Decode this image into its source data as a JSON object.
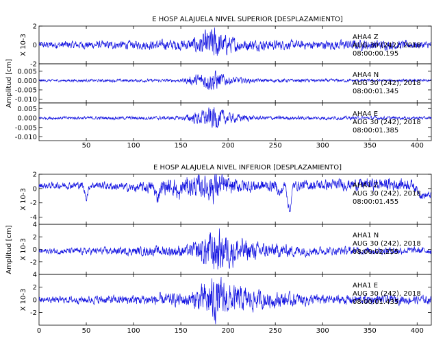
{
  "chart_data": [
    {
      "type": "line",
      "title": "E HOSP ALAJUELA NIVEL SUPERIOR [DESPLAZAMIENTO]",
      "ylabel": "Amplitud [cm]",
      "xlim": [
        0,
        415
      ],
      "xticks": [
        "50",
        "100",
        "150",
        "200",
        "250",
        "300",
        "350",
        "400"
      ],
      "line_color": "#1010e0",
      "panels": [
        {
          "scale_label": "X 10-3",
          "ylim": [
            -2,
            2
          ],
          "yticks": [
            "2",
            "0",
            "-2"
          ],
          "station": "AHA4   Z",
          "date": "AUG 30 (242), 2018",
          "time": "08:00:00.195",
          "series": {
            "name": "AHA4 Z",
            "x_range": [
              0,
              415
            ],
            "envelope": [
              [
                0,
                0.35
              ],
              [
                100,
                0.4
              ],
              [
                160,
                0.55
              ],
              [
                175,
                1.2
              ],
              [
                185,
                1.8
              ],
              [
                195,
                1.0
              ],
              [
                215,
                0.55
              ],
              [
                280,
                0.4
              ],
              [
                340,
                0.5
              ],
              [
                415,
                0.35
              ]
            ],
            "drift": [
              [
                0,
                0.0
              ],
              [
                415,
                0.0
              ]
            ],
            "events": []
          }
        },
        {
          "scale_label": "",
          "ylim": [
            -0.012,
            0.009
          ],
          "yticks": [
            "0.005",
            "0.000",
            "-0.005",
            "-0.010"
          ],
          "station": "AHA4   N",
          "date": "AUG 30 (242), 2018",
          "time": "08:00:01.345",
          "series": {
            "name": "AHA4 N",
            "x_range": [
              0,
              415
            ],
            "envelope": [
              [
                0,
                0.0006
              ],
              [
                150,
                0.0008
              ],
              [
                175,
                0.004
              ],
              [
                185,
                0.0055
              ],
              [
                200,
                0.002
              ],
              [
                230,
                0.0009
              ],
              [
                415,
                0.0006
              ]
            ],
            "drift": [
              [
                0,
                0.0
              ],
              [
                415,
                0.0
              ]
            ],
            "events": []
          }
        },
        {
          "scale_label": "",
          "ylim": [
            -0.012,
            0.008
          ],
          "yticks": [
            "0.005",
            "0.000",
            "-0.005",
            "-0.010"
          ],
          "station": "AHA4   E",
          "date": "AUG 30 (242), 2018",
          "time": "08:00:01.385",
          "series": {
            "name": "AHA4 E",
            "x_range": [
              0,
              415
            ],
            "envelope": [
              [
                0,
                0.0007
              ],
              [
                150,
                0.0009
              ],
              [
                175,
                0.004
              ],
              [
                185,
                0.006
              ],
              [
                200,
                0.0025
              ],
              [
                230,
                0.001
              ],
              [
                415,
                0.0007
              ]
            ],
            "drift": [
              [
                0,
                0.0
              ],
              [
                415,
                0.0
              ]
            ],
            "events": []
          }
        }
      ]
    },
    {
      "type": "line",
      "title": "E HOSP ALAJUELA NIVEL INFERIOR [DESPLAZAMIENTO]",
      "ylabel": "Amplitud [cm]",
      "xlim": [
        0,
        415
      ],
      "xticks": [
        "0",
        "50",
        "100",
        "150",
        "200",
        "250",
        "300",
        "350",
        "400"
      ],
      "line_color": "#1010e0",
      "panels": [
        {
          "scale_label": "X 10-3",
          "ylim": [
            -5,
            2
          ],
          "yticks": [
            "2",
            "0",
            "-2",
            "-4"
          ],
          "station": "AHA1   Z",
          "date": "AUG 30 (242), 2018",
          "time": "08:00:01.455",
          "series": {
            "name": "AHA1 Z",
            "x_range": [
              0,
              415
            ],
            "envelope": [
              [
                0,
                0.4
              ],
              [
                100,
                0.55
              ],
              [
                175,
                1.5
              ],
              [
                185,
                2.2
              ],
              [
                200,
                1.0
              ],
              [
                260,
                0.6
              ],
              [
                380,
                0.8
              ],
              [
                415,
                0.4
              ]
            ],
            "drift": [
              [
                0,
                0.4
              ],
              [
                60,
                0.5
              ],
              [
                100,
                0.1
              ],
              [
                150,
                0.3
              ],
              [
                260,
                0.4
              ],
              [
                350,
                0.6
              ],
              [
                395,
                0.6
              ],
              [
                405,
                -1.0
              ],
              [
                415,
                -0.9
              ]
            ],
            "events": [
              [
                50,
                -1.8
              ],
              [
                125,
                -1.6
              ],
              [
                148,
                -1.5
              ],
              [
                255,
                -1.3
              ],
              [
                265,
                -3.8
              ]
            ]
          }
        },
        {
          "scale_label": "X 10-3",
          "ylim": [
            -4,
            4
          ],
          "yticks": [
            "4",
            "2",
            "0",
            "-2"
          ],
          "station": "AHA1   N",
          "date": "AUG 30 (242), 2018",
          "time": "08:00:02.255",
          "series": {
            "name": "AHA1 N",
            "x_range": [
              0,
              415
            ],
            "envelope": [
              [
                0,
                0.4
              ],
              [
                100,
                0.6
              ],
              [
                160,
                0.9
              ],
              [
                178,
                2.5
              ],
              [
                185,
                3.4
              ],
              [
                200,
                2.4
              ],
              [
                230,
                1.2
              ],
              [
                300,
                0.6
              ],
              [
                415,
                0.5
              ]
            ],
            "drift": [
              [
                0,
                -0.3
              ],
              [
                415,
                -0.2
              ]
            ],
            "events": []
          }
        },
        {
          "scale_label": "X 10-3",
          "ylim": [
            -4,
            4
          ],
          "yticks": [
            "4",
            "2",
            "0",
            "-2"
          ],
          "station": "AHA1   E",
          "date": "AUG 30 (242), 2018",
          "time": "08:00:01.435",
          "series": {
            "name": "AHA1 E",
            "x_range": [
              0,
              415
            ],
            "envelope": [
              [
                0,
                0.4
              ],
              [
                100,
                0.7
              ],
              [
                160,
                1.0
              ],
              [
                178,
                2.6
              ],
              [
                185,
                3.4
              ],
              [
                200,
                2.2
              ],
              [
                240,
                1.2
              ],
              [
                300,
                0.7
              ],
              [
                415,
                0.6
              ]
            ],
            "drift": [
              [
                0,
                0.0
              ],
              [
                415,
                0.0
              ]
            ],
            "events": []
          }
        }
      ]
    }
  ]
}
